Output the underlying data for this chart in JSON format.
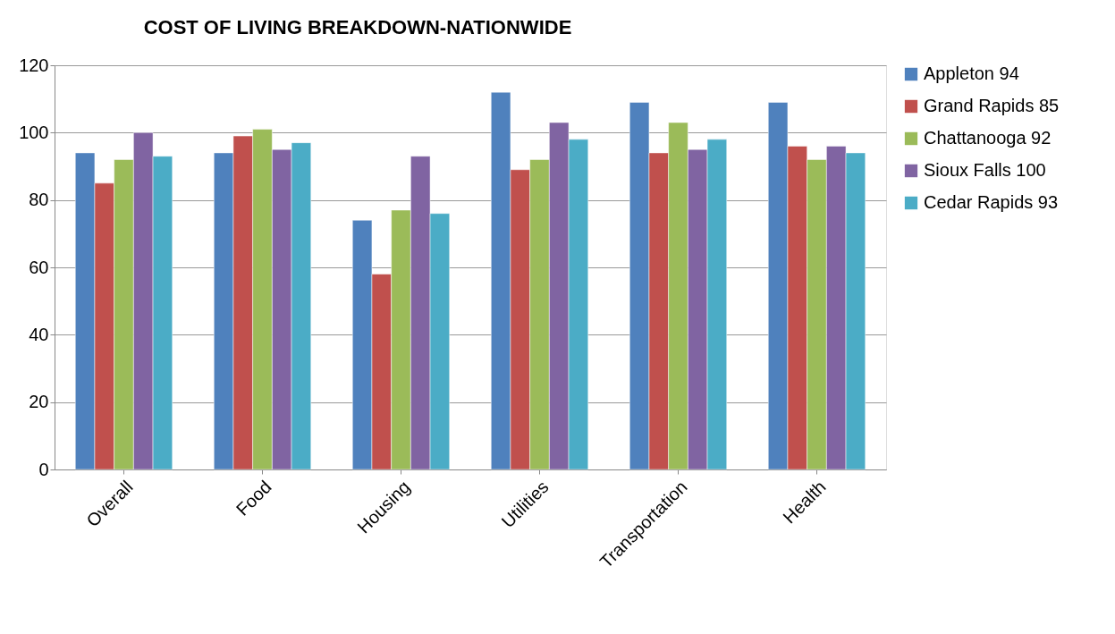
{
  "chart_data": {
    "type": "bar",
    "title": "COST OF LIVING BREAKDOWN-NATIONWIDE",
    "categories": [
      "Overall",
      "Food",
      "Housing",
      "Utilities",
      "Transportation",
      "Health"
    ],
    "series": [
      {
        "name": "Appleton 94",
        "color": "#4f81bd",
        "values": [
          94,
          94,
          74,
          112,
          109,
          109
        ]
      },
      {
        "name": "Grand Rapids 85",
        "color": "#c0504d",
        "values": [
          85,
          99,
          58,
          89,
          94,
          96
        ]
      },
      {
        "name": "Chattanooga 92",
        "color": "#9bbb59",
        "values": [
          92,
          101,
          77,
          92,
          103,
          92
        ]
      },
      {
        "name": "Sioux Falls 100",
        "color": "#8064a2",
        "values": [
          100,
          95,
          93,
          103,
          95,
          96
        ]
      },
      {
        "name": "Cedar Rapids 93",
        "color": "#4bacc6",
        "values": [
          93,
          97,
          76,
          98,
          98,
          94
        ]
      }
    ],
    "ylim": [
      0,
      120
    ],
    "yticks": [
      0,
      20,
      40,
      60,
      80,
      100,
      120
    ],
    "grid": "y",
    "legend": "right"
  }
}
